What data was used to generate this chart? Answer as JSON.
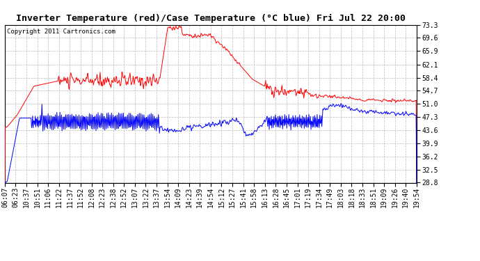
{
  "title": "Inverter Temperature (red)/Case Temperature (°C blue) Fri Jul 22 20:00",
  "copyright": "Copyright 2011 Cartronics.com",
  "ylim": [
    28.8,
    73.3
  ],
  "yticks": [
    28.8,
    32.5,
    36.2,
    39.9,
    43.6,
    47.3,
    51.0,
    54.7,
    58.4,
    62.1,
    65.9,
    69.6,
    73.3
  ],
  "bg_color": "#ffffff",
  "plot_bg": "#ffffff",
  "grid_color": "#aaaaaa",
  "red_color": "#ff0000",
  "blue_color": "#0000ff",
  "title_fontsize": 9.5,
  "copyright_fontsize": 6.5,
  "tick_fontsize": 7,
  "x_labels": [
    "06:07",
    "06:23",
    "10:37",
    "10:51",
    "11:06",
    "11:22",
    "11:37",
    "11:52",
    "12:08",
    "12:23",
    "12:38",
    "12:52",
    "13:07",
    "13:22",
    "13:37",
    "13:54",
    "14:09",
    "14:23",
    "14:39",
    "14:54",
    "15:12",
    "15:27",
    "15:41",
    "15:58",
    "16:13",
    "16:28",
    "16:45",
    "17:01",
    "17:19",
    "17:34",
    "17:49",
    "18:03",
    "18:18",
    "18:33",
    "18:51",
    "19:09",
    "19:26",
    "19:40",
    "19:54"
  ]
}
